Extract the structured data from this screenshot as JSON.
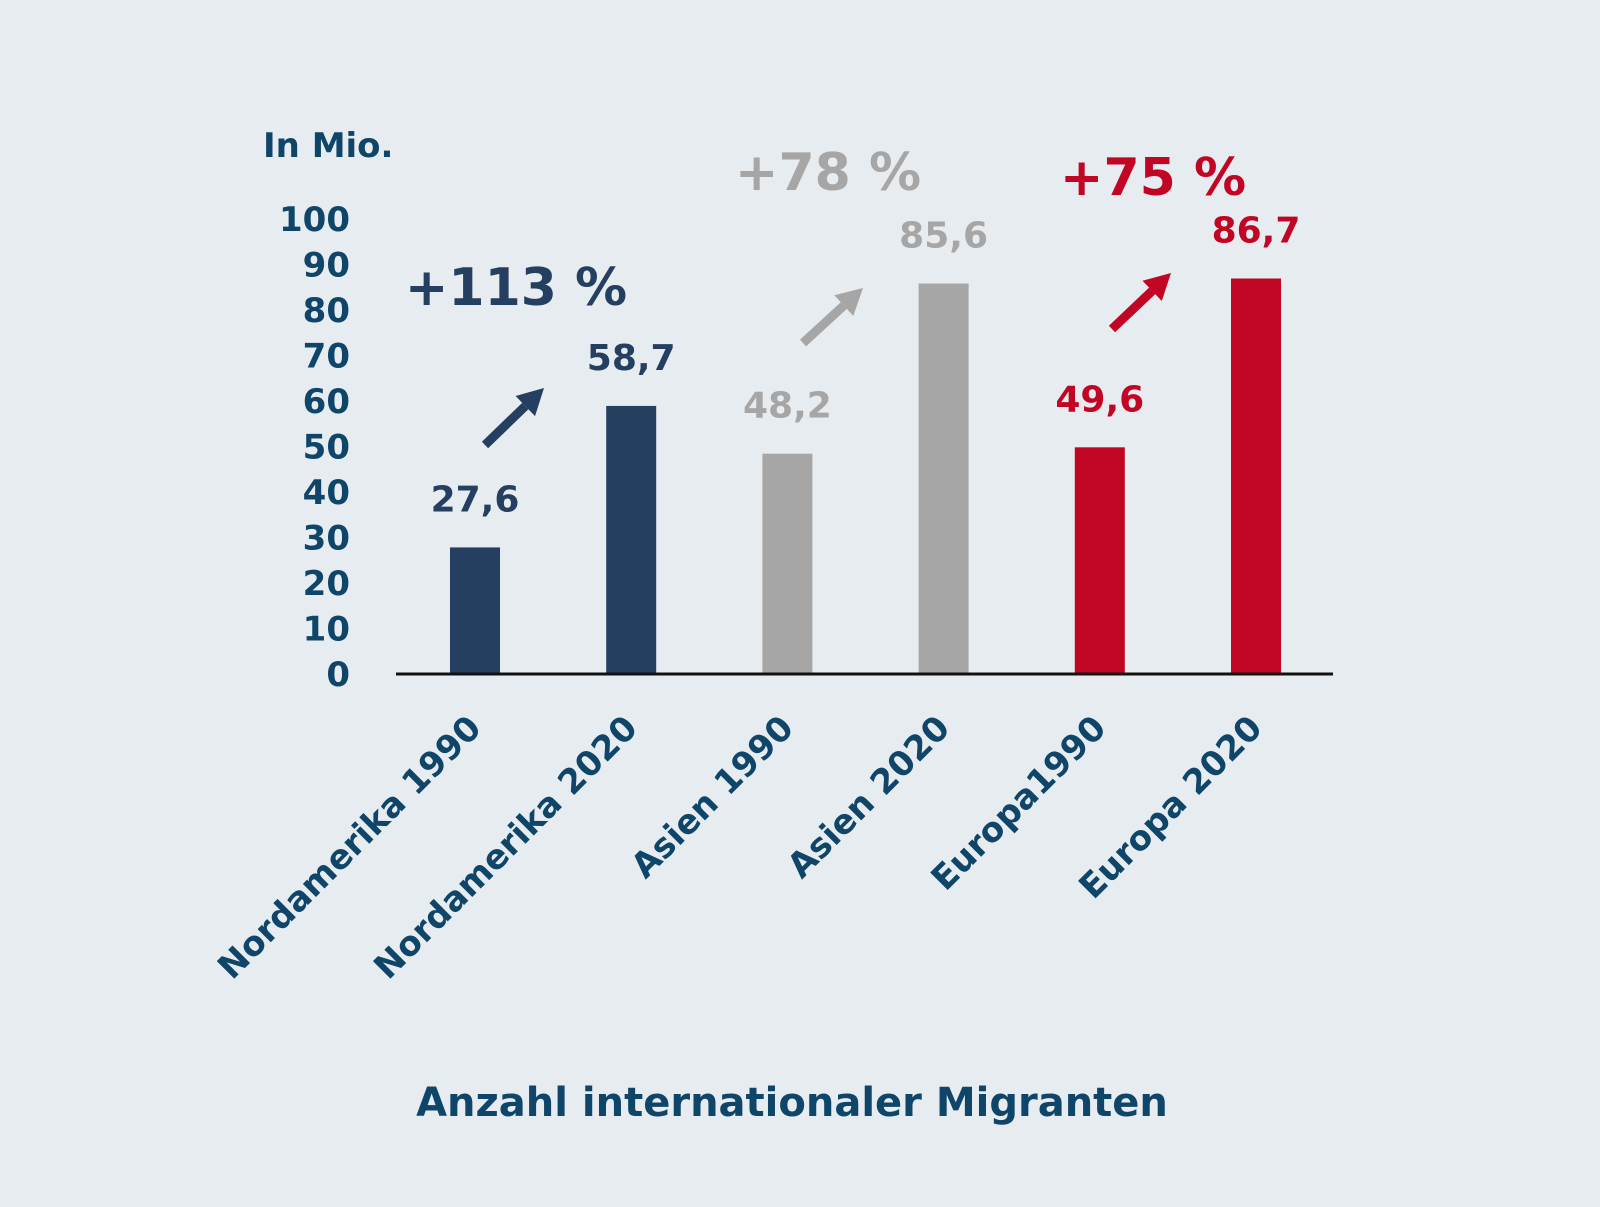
{
  "chart_data": {
    "type": "bar",
    "title": "Anzahl internationaler Migranten",
    "ylabel": "In Mio.",
    "ylim": [
      0,
      100
    ],
    "yticks": [
      "0",
      "10",
      "20",
      "30",
      "40",
      "50",
      "60",
      "70",
      "80",
      "90",
      "100"
    ],
    "categories": [
      "Nordamerika 1990",
      "Nordamerika 2020",
      "Asien 1990",
      "Asien 2020",
      "Europa1990",
      "Europa 2020"
    ],
    "values": [
      27.6,
      58.7,
      48.2,
      85.6,
      49.6,
      86.7
    ],
    "value_labels": [
      "27,6",
      "58,7",
      "48,2",
      "85,6",
      "49,6",
      "86,7"
    ],
    "bar_colors": [
      "#253f61",
      "#253f61",
      "#a6a6a6",
      "#a6a6a6",
      "#c10524",
      "#c10524"
    ],
    "grid": false,
    "annotations": [
      {
        "text": "+113 %",
        "from": "Nordamerika 1990",
        "to": "Nordamerika 2020",
        "color": "#253f61"
      },
      {
        "text": "+78 %",
        "from": "Asien 1990",
        "to": "Asien 2020",
        "color": "#a6a6a6"
      },
      {
        "text": "+75 %",
        "from": "Europa1990",
        "to": "Europa 2020",
        "color": "#c10524"
      }
    ]
  },
  "colors": {
    "background": "#e7ecf0",
    "axis_text": "#0f4569",
    "axis_line": "#111111"
  }
}
